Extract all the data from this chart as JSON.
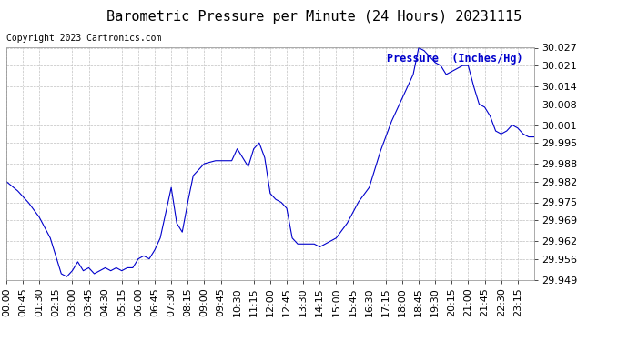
{
  "title": "Barometric Pressure per Minute (24 Hours) 20231115",
  "copyright_text": "Copyright 2023 Cartronics.com",
  "legend_text": "Pressure  (Inches/Hg)",
  "line_color": "#0000cc",
  "background_color": "#ffffff",
  "grid_color": "#c0c0c0",
  "title_color": "#000000",
  "copyright_color": "#000000",
  "legend_color": "#0000cc",
  "ylim": [
    29.949,
    30.027
  ],
  "yticks": [
    29.949,
    29.956,
    29.962,
    29.969,
    29.975,
    29.982,
    29.988,
    29.995,
    30.001,
    30.008,
    30.014,
    30.021,
    30.027
  ],
  "xtick_labels": [
    "00:00",
    "00:45",
    "01:30",
    "02:15",
    "03:00",
    "03:45",
    "04:30",
    "05:15",
    "06:00",
    "06:45",
    "07:30",
    "08:15",
    "09:00",
    "09:45",
    "10:30",
    "11:15",
    "12:00",
    "12:45",
    "13:30",
    "14:15",
    "15:00",
    "15:45",
    "16:30",
    "17:15",
    "18:00",
    "18:45",
    "19:30",
    "20:15",
    "21:00",
    "21:45",
    "22:30",
    "23:15"
  ],
  "title_fontsize": 11,
  "axis_fontsize": 8,
  "copyright_fontsize": 7,
  "legend_fontsize": 8.5
}
